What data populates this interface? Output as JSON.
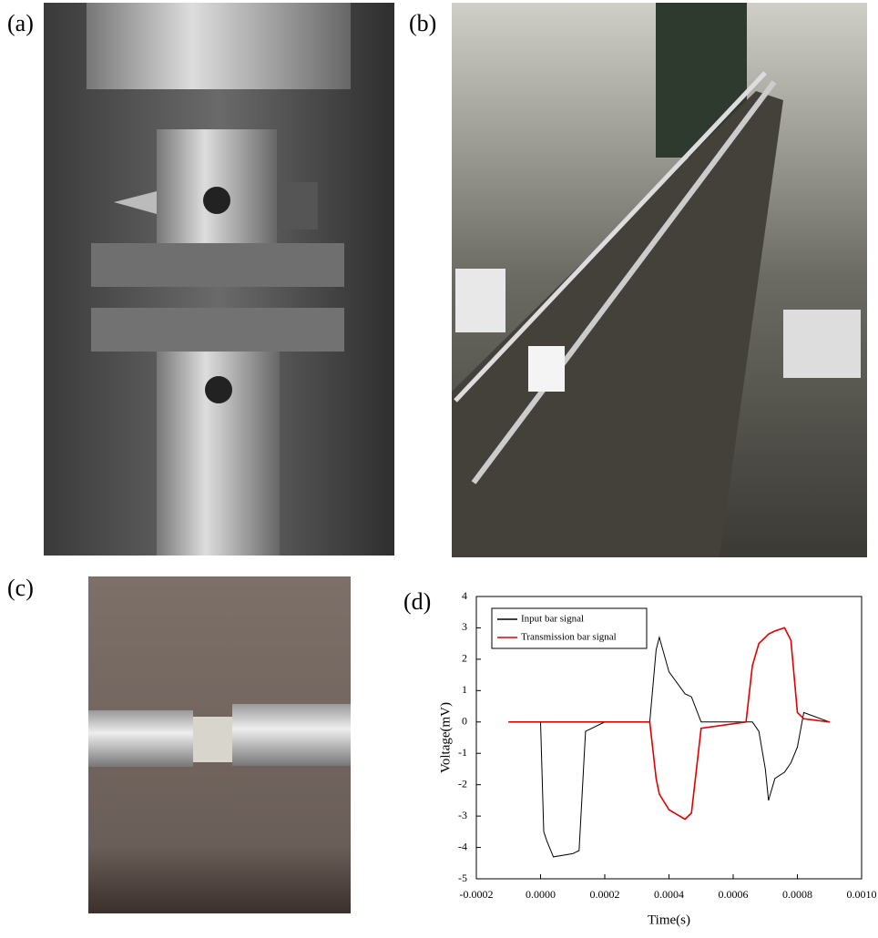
{
  "panels": [
    {
      "label": "(a)"
    },
    {
      "label": "(b)"
    },
    {
      "label": "(c)"
    },
    {
      "label": "(d)"
    }
  ],
  "chart_data": {
    "type": "line",
    "x": [
      -0.0001,
      0,
      1e-05,
      2e-05,
      4e-05,
      0.0001,
      0.00012,
      0.00014,
      0.0002,
      0.00034,
      0.00036,
      0.00037,
      0.0004,
      0.00045,
      0.00047,
      0.0005,
      0.00064,
      0.00066,
      0.00068,
      0.0007,
      0.00071,
      0.00073,
      0.00076,
      0.00078,
      0.0008,
      0.00082,
      0.0009
    ],
    "series": [
      {
        "name": "Input bar signal",
        "color": "#000000",
        "values": [
          0,
          0,
          -3.5,
          -3.8,
          -4.3,
          -4.2,
          -4.1,
          -0.3,
          0,
          0,
          2.3,
          2.7,
          1.6,
          0.9,
          0.8,
          0,
          0,
          0,
          -0.3,
          -1.5,
          -2.5,
          -1.8,
          -1.6,
          -1.3,
          -0.8,
          0.3,
          0
        ]
      },
      {
        "name": "Transmission bar signal",
        "color": "#e00000",
        "values": [
          0,
          0,
          0,
          0,
          0,
          0,
          0,
          0,
          0,
          0,
          -1.8,
          -2.3,
          -2.8,
          -3.1,
          -2.9,
          -0.2,
          0,
          1.8,
          2.5,
          2.7,
          2.8,
          2.9,
          3.0,
          2.6,
          0.3,
          0.1,
          0
        ]
      }
    ],
    "x_label": "Time(s)",
    "y_label": "Voltage(mV)",
    "xlim": [
      -0.0002,
      0.001
    ],
    "xticks": [
      {
        "value": -0.0002,
        "label": "-0.0002"
      },
      {
        "value": 0,
        "label": "0.0000"
      },
      {
        "value": 0.0002,
        "label": "0.0002"
      },
      {
        "value": 0.0004,
        "label": "0.0004"
      },
      {
        "value": 0.0006,
        "label": "0.0006"
      },
      {
        "value": 0.0008,
        "label": "0.0008"
      },
      {
        "value": 0.001,
        "label": "0.0010"
      }
    ],
    "ylim": [
      -5,
      4
    ],
    "yticks": [
      -5,
      -4,
      -3,
      -2,
      -1,
      0,
      1,
      2,
      3,
      4
    ],
    "legend": "upper-left"
  }
}
